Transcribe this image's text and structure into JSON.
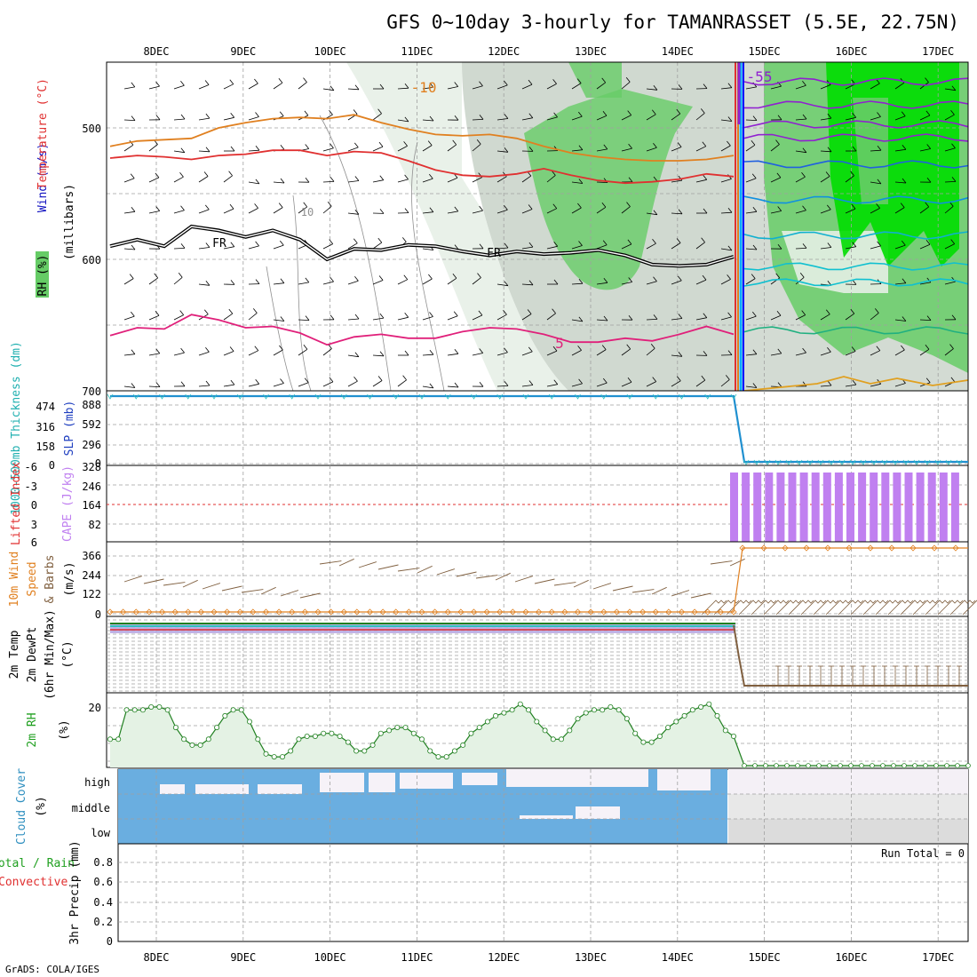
{
  "chart_data": {
    "type": "meteogram",
    "title": "GFS 0~10day 3-hourly for TAMANRASSET (5.5E, 22.75N)",
    "footer": "GrADS: COLA/IGES",
    "dates": [
      "8DEC",
      "9DEC",
      "10DEC",
      "11DEC",
      "12DEC",
      "13DEC",
      "14DEC",
      "15DEC",
      "16DEC",
      "17DEC"
    ],
    "colors": {
      "rh_green": "#00dd00",
      "rh_mid": "#66cc66",
      "rh_grey": "#c8d2c8",
      "temp_red": "#e03030",
      "temp_orange": "#e08020",
      "temp_pink": "#e0207a",
      "cape": "#c080f0",
      "slp": "#2090d0",
      "rh2m": "#208020",
      "cloud": "#6aaee0",
      "barb": "#806040"
    },
    "panels": {
      "upper_air": {
        "ylabel_parts": [
          "Wind (m/s)",
          "Temperature (°C)",
          "RH (%)",
          "(millibars)"
        ],
        "yticks": [
          "500",
          "600",
          "700"
        ],
        "ylim": [
          450,
          700
        ],
        "contour_labels": [
          "-10",
          "5",
          "FR",
          "FR",
          "10",
          "-55"
        ],
        "isotherms": [
          {
            "name": "-10",
            "color": "#e08020",
            "pressure": [
              514,
              510,
              509,
              508,
              500,
              496,
              493,
              492,
              493,
              490,
              496,
              501,
              505,
              506,
              505,
              508,
              514,
              519,
              522,
              524,
              525,
              525,
              524,
              521
            ]
          },
          {
            "name": "-5",
            "color": "#e03030",
            "pressure": [
              523,
              521,
              522,
              524,
              521,
              520,
              517,
              517,
              521,
              518,
              519,
              525,
              532,
              536,
              537,
              535,
              531,
              536,
              540,
              542,
              541,
              539,
              535,
              537
            ]
          },
          {
            "name": "FR",
            "color": "#000000",
            "pressure": [
              590,
              585,
              590,
              575,
              578,
              583,
              578,
              585,
              600,
              592,
              593,
              589,
              590,
              594,
              597,
              594,
              596,
              595,
              593,
              597,
              604,
              605,
              604,
              598
            ]
          },
          {
            "name": "5",
            "color": "#e0207a",
            "pressure": [
              658,
              652,
              653,
              642,
              646,
              652,
              651,
              656,
              665,
              659,
              657,
              660,
              660,
              655,
              652,
              653,
              657,
              663,
              663,
              660,
              662,
              657,
              651,
              657
            ]
          }
        ]
      },
      "slp_thickness": {
        "ylabel_left": "1000-500mb Thickness (dm)",
        "ylabel_right": "SLP (mb)",
        "yticks_left": [
          "474",
          "316",
          "158",
          "0"
        ],
        "yticks_right": [
          "888",
          "592",
          "296",
          "0"
        ],
        "slp_start": 940,
        "slp_end": 2
      },
      "cape_li": {
        "ylabel_left": "Lifted Index",
        "ylabel_right": "CAPE (J/kg)",
        "yticks_left": [
          "-6",
          "-3",
          "0",
          "3",
          "6"
        ],
        "yticks_right": [
          "328",
          "246",
          "164",
          "82"
        ],
        "cape_bars": 20
      },
      "wind10m": {
        "ylabel_parts": [
          "10m Wind",
          "Speed",
          "& Barbs",
          "(m/s)"
        ],
        "yticks": [
          "366",
          "244",
          "122",
          "0"
        ]
      },
      "temp2m": {
        "ylabel_parts": [
          "2m Temp",
          "2m DewPt",
          "(6hr Min/Max)",
          "(°C)"
        ]
      },
      "rh2m": {
        "ylabel_parts": [
          "2m RH",
          "(%)"
        ],
        "yticks": [
          "20"
        ],
        "values": [
          9,
          9,
          19,
          19,
          19,
          20,
          20,
          19,
          13,
          9,
          7,
          7,
          9,
          13,
          17,
          19,
          19,
          15,
          9,
          4,
          3,
          3,
          5,
          9,
          10,
          10,
          11,
          11,
          10,
          8,
          5,
          5,
          7,
          11,
          12,
          13,
          13,
          11,
          9,
          5,
          3,
          3,
          5,
          7,
          11,
          13,
          15,
          17,
          18,
          19,
          21,
          19,
          15,
          12,
          9,
          9,
          12,
          16,
          18,
          19,
          19,
          20,
          19,
          16,
          11,
          8,
          8,
          10,
          13,
          15,
          17,
          19,
          20,
          21,
          17,
          12,
          10,
          10,
          -1
        ]
      },
      "cloud": {
        "ylabel_parts": [
          "Cloud Cover",
          "(%)"
        ],
        "levels": [
          "high",
          "middle",
          "low"
        ]
      },
      "precip": {
        "ylabel_parts": [
          "Total / Rain",
          "Convective",
          "3hr Precip (mm)"
        ],
        "yticks": [
          "0.8",
          "0.6",
          "0.4",
          "0.2",
          "0"
        ],
        "ylim": [
          0,
          1
        ],
        "run_total_label": "Run Total = 0"
      }
    }
  }
}
